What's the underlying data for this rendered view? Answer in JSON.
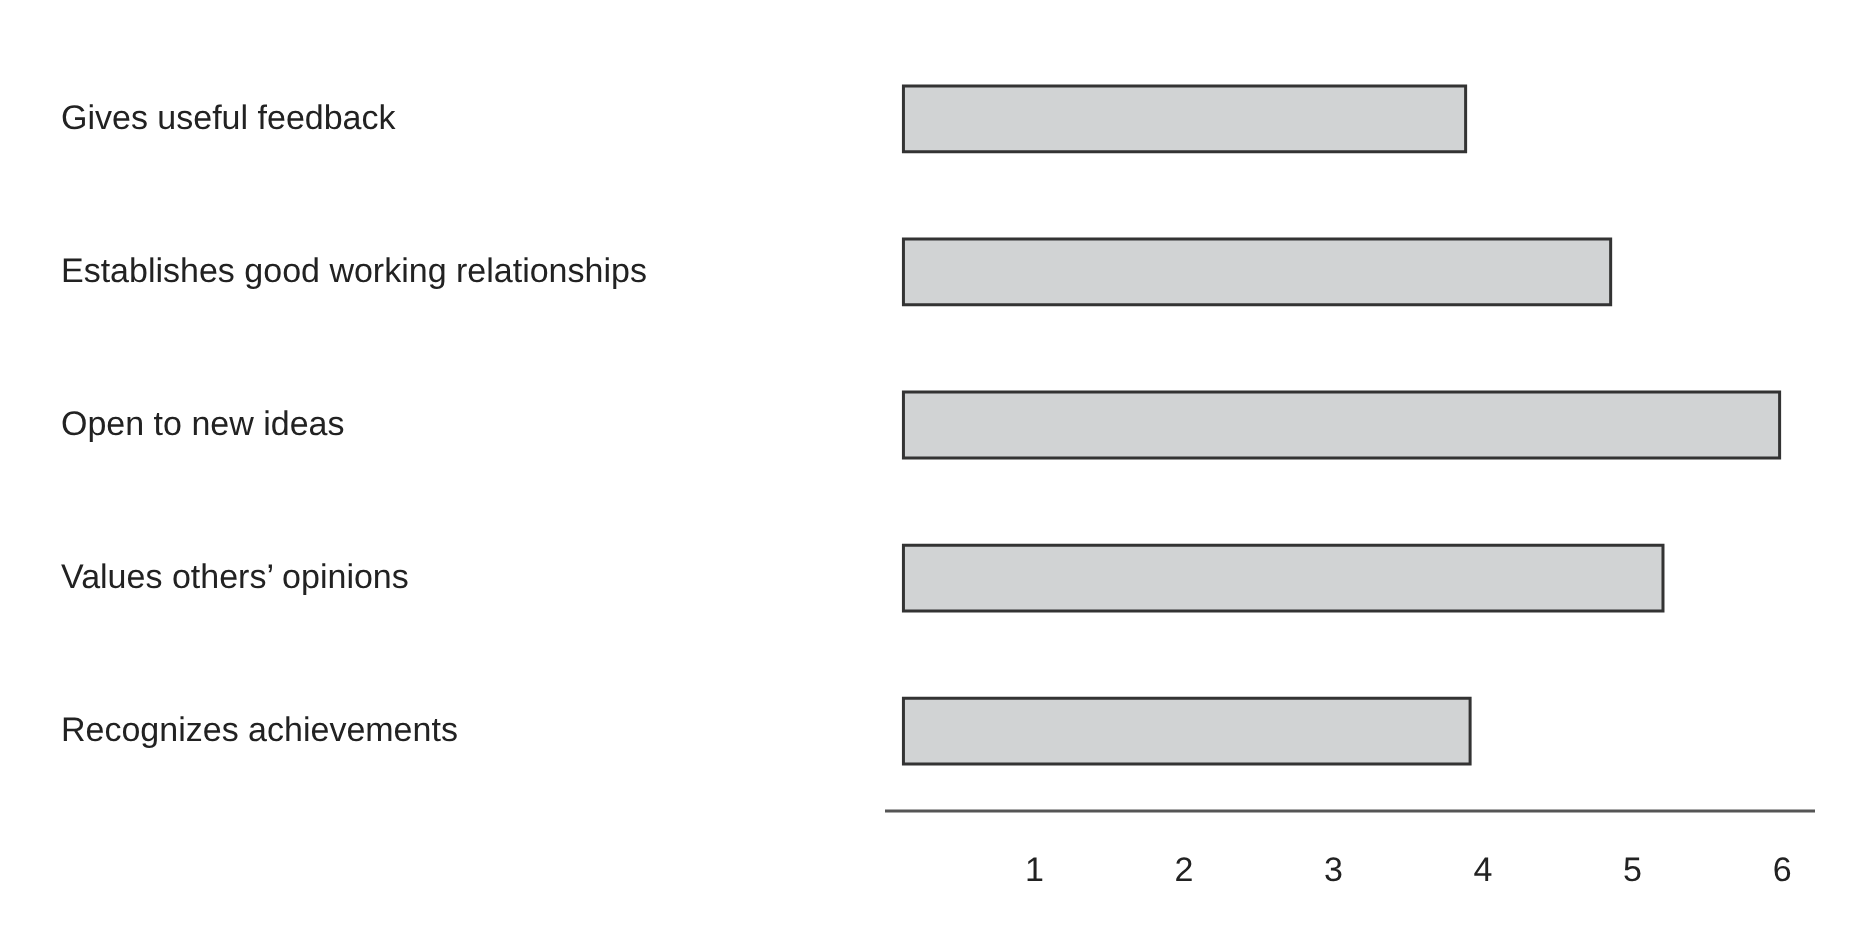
{
  "chart_data": {
    "type": "bar",
    "orientation": "horizontal",
    "categories": [
      "Gives useful feedback",
      "Establishes good working relationships",
      "Open to new ideas",
      "Values others’ opinions",
      "Recognizes achievements"
    ],
    "base": [
      0.13,
      0.13,
      0.13,
      0.13,
      0.13
    ],
    "values": [
      3.76,
      4.73,
      5.86,
      5.08,
      3.79
    ],
    "color": "#d1d3d4",
    "xlim": [
      0,
      6.22
    ],
    "xticks": [
      1,
      2,
      3,
      4,
      5,
      6
    ],
    "grid": false
  }
}
